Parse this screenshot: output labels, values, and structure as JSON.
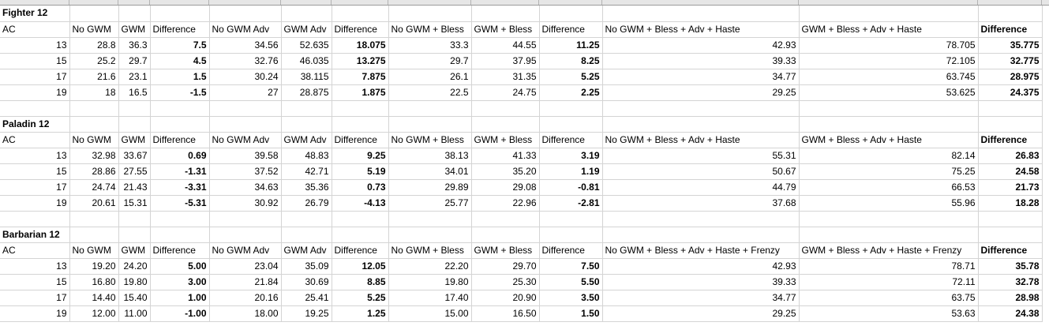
{
  "sections": [
    {
      "title": "Fighter 12",
      "header": [
        "AC",
        "No GWM",
        "GWM",
        "Difference",
        "No GWM Adv",
        "GWM Adv",
        "Difference",
        "No GWM + Bless",
        "GWM + Bless",
        "Difference",
        "No GWM + Bless + Adv + Haste",
        "GWM + Bless + Adv + Haste",
        "Difference"
      ],
      "rows": [
        [
          "13",
          "28.8",
          "36.3",
          "7.5",
          "34.56",
          "52.635",
          "18.075",
          "33.3",
          "44.55",
          "11.25",
          "42.93",
          "78.705",
          "35.775"
        ],
        [
          "15",
          "25.2",
          "29.7",
          "4.5",
          "32.76",
          "46.035",
          "13.275",
          "29.7",
          "37.95",
          "8.25",
          "39.33",
          "72.105",
          "32.775"
        ],
        [
          "17",
          "21.6",
          "23.1",
          "1.5",
          "30.24",
          "38.115",
          "7.875",
          "26.1",
          "31.35",
          "5.25",
          "34.77",
          "63.745",
          "28.975"
        ],
        [
          "19",
          "18",
          "16.5",
          "-1.5",
          "27",
          "28.875",
          "1.875",
          "22.5",
          "24.75",
          "2.25",
          "29.25",
          "53.625",
          "24.375"
        ]
      ]
    },
    {
      "title": "Paladin 12",
      "header": [
        "AC",
        "No GWM",
        "GWM",
        "Difference",
        "No GWM Adv",
        "GWM Adv",
        "Difference",
        "No GWM + Bless",
        "GWM + Bless",
        "Difference",
        "No GWM + Bless + Adv + Haste",
        "GWM + Bless + Adv + Haste",
        "Difference"
      ],
      "rows": [
        [
          "13",
          "32.98",
          "33.67",
          "0.69",
          "39.58",
          "48.83",
          "9.25",
          "38.13",
          "41.33",
          "3.19",
          "55.31",
          "82.14",
          "26.83"
        ],
        [
          "15",
          "28.86",
          "27.55",
          "-1.31",
          "37.52",
          "42.71",
          "5.19",
          "34.01",
          "35.20",
          "1.19",
          "50.67",
          "75.25",
          "24.58"
        ],
        [
          "17",
          "24.74",
          "21.43",
          "-3.31",
          "34.63",
          "35.36",
          "0.73",
          "29.89",
          "29.08",
          "-0.81",
          "44.79",
          "66.53",
          "21.73"
        ],
        [
          "19",
          "20.61",
          "15.31",
          "-5.31",
          "30.92",
          "26.79",
          "-4.13",
          "25.77",
          "22.96",
          "-2.81",
          "37.68",
          "55.96",
          "18.28"
        ]
      ]
    },
    {
      "title": "Barbarian 12",
      "header": [
        "AC",
        "No GWM",
        "GWM",
        "Difference",
        "No GWM Adv",
        "GWM Adv",
        "Difference",
        "No GWM + Bless",
        "GWM + Bless",
        "Difference",
        "No GWM + Bless + Adv + Haste + Frenzy",
        "GWM + Bless + Adv + Haste + Frenzy",
        "Difference"
      ],
      "rows": [
        [
          "13",
          "19.20",
          "24.20",
          "5.00",
          "23.04",
          "35.09",
          "12.05",
          "22.20",
          "29.70",
          "7.50",
          "42.93",
          "78.71",
          "35.78"
        ],
        [
          "15",
          "16.80",
          "19.80",
          "3.00",
          "21.84",
          "30.69",
          "8.85",
          "19.80",
          "25.30",
          "5.50",
          "39.33",
          "72.11",
          "32.78"
        ],
        [
          "17",
          "14.40",
          "15.40",
          "1.00",
          "20.16",
          "25.41",
          "5.25",
          "17.40",
          "20.90",
          "3.50",
          "34.77",
          "63.75",
          "28.98"
        ],
        [
          "19",
          "12.00",
          "11.00",
          "-1.00",
          "18.00",
          "19.25",
          "1.25",
          "15.00",
          "16.50",
          "1.50",
          "29.25",
          "53.63",
          "24.38"
        ]
      ]
    }
  ]
}
